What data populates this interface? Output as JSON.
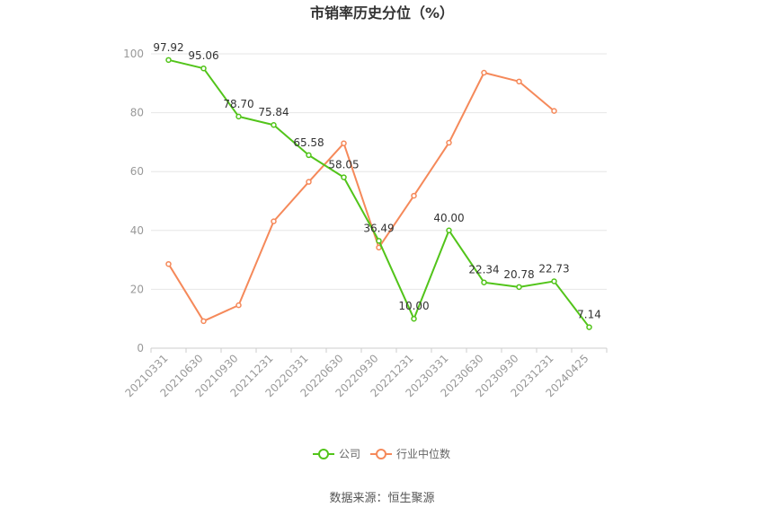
{
  "chart_data": {
    "type": "line",
    "title": "市销率历史分位（%）",
    "categories": [
      "20210331",
      "20210630",
      "20210930",
      "20211231",
      "20220331",
      "20220630",
      "20220930",
      "20221231",
      "20230331",
      "20230630",
      "20230930",
      "20231231",
      "20240425"
    ],
    "ylim": [
      0,
      100
    ],
    "yticks": [
      0,
      20,
      40,
      60,
      80,
      100
    ],
    "grid": true,
    "legend_position": "bottom",
    "series": [
      {
        "name": "公司",
        "color": "#52c41a",
        "show_labels": true,
        "values": [
          97.92,
          95.06,
          78.7,
          75.84,
          65.58,
          58.05,
          36.49,
          10.0,
          40.0,
          22.34,
          20.78,
          22.73,
          7.14
        ],
        "labels": [
          "97.92",
          "95.06",
          "78.70",
          "75.84",
          "65.58",
          "58.05",
          "36.49",
          "10.00",
          "40.00",
          "22.34",
          "20.78",
          "22.73",
          "7.14"
        ]
      },
      {
        "name": "行业中位数",
        "color": "#f5895a",
        "show_labels": false,
        "values": [
          28.6,
          9.2,
          14.6,
          43.1,
          56.5,
          69.6,
          34.2,
          51.8,
          69.8,
          93.6,
          90.6,
          80.6,
          null
        ]
      }
    ]
  },
  "source": "数据来源：恒生聚源"
}
